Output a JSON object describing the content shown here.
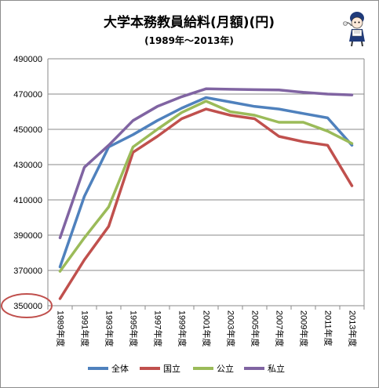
{
  "chart_data": {
    "type": "line",
    "title": "大学本務教員給料(月額)(円)",
    "subtitle": "(1989年～2013年)",
    "categories": [
      "1989年度",
      "1991年度",
      "1993年度",
      "1995年度",
      "1997年度",
      "1999年度",
      "2001年度",
      "2003年度",
      "2005年度",
      "2007年度",
      "2009年度",
      "2011年度",
      "2013年度"
    ],
    "y_ticks": [
      "490000",
      "470000",
      "450000",
      "430000",
      "410000",
      "390000",
      "370000",
      "350000"
    ],
    "ylim": [
      350000,
      490000
    ],
    "grid": true,
    "legend_position": "bottom",
    "series": [
      {
        "name": "全体",
        "color": "#4f81bd",
        "values": [
          372000,
          412000,
          440000,
          447000,
          455000,
          462000,
          468000,
          465500,
          463000,
          461500,
          459000,
          456500,
          441000
        ]
      },
      {
        "name": "国立",
        "color": "#c0504d",
        "values": [
          354000,
          376000,
          395000,
          437000,
          446000,
          456000,
          461500,
          458000,
          456000,
          446000,
          443000,
          441000,
          418000
        ]
      },
      {
        "name": "公立",
        "color": "#9bbb59",
        "values": [
          369500,
          388500,
          406000,
          440000,
          450000,
          459500,
          466000,
          460000,
          458000,
          454000,
          454000,
          449000,
          442000
        ]
      },
      {
        "name": "私立",
        "color": "#8064a2",
        "values": [
          388500,
          428500,
          441000,
          455000,
          463000,
          468500,
          473000,
          472700,
          472500,
          472300,
          471000,
          470000,
          469500
        ]
      }
    ],
    "annotation": {
      "type": "ellipse",
      "target_tick": "350000",
      "color": "#c0504d"
    }
  }
}
